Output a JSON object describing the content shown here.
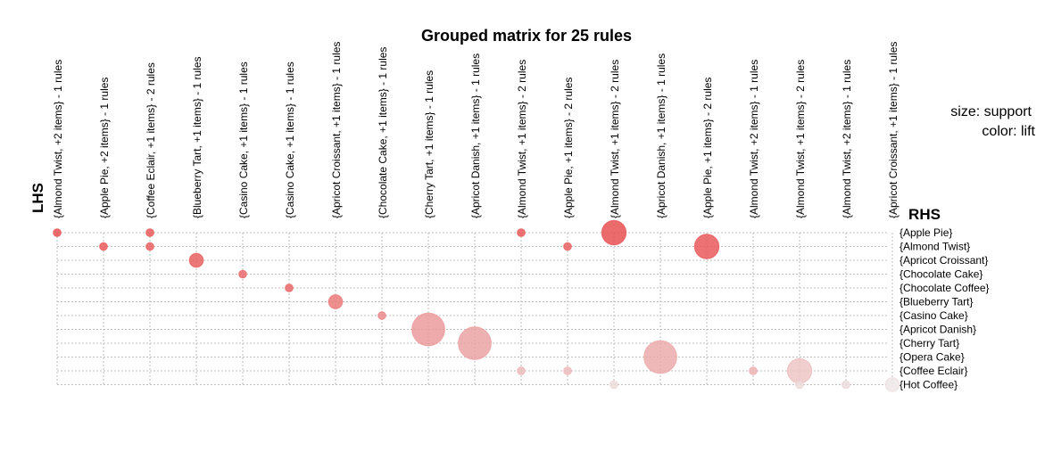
{
  "chart_data": {
    "type": "scatter",
    "subtype": "grouped-matrix",
    "title": "Grouped matrix for 25 rules",
    "xlabel": "LHS",
    "ylabel": "RHS",
    "legend": {
      "size": "size: support",
      "color": "color: lift"
    },
    "lhs_groups": [
      "{Almond Twist, +2 items} - 1 rules",
      "{Apple Pie, +2 items} - 1 rules",
      "{Coffee Eclair, +1 items} - 2 rules",
      "{Blueberry Tart, +1 items} - 1 rules",
      "{Casino Cake, +1 items} - 1 rules",
      "{Casino Cake, +1 items} - 1 rules",
      "{Apricot Croissant, +1 items} - 1 rules",
      "{Chocolate Cake, +1 items} - 1 rules",
      "{Cherry Tart, +1 items} - 1 rules",
      "{Apricot Danish, +1 items} - 1 rules",
      "{Almond Twist, +1 items} - 2 rules",
      "{Apple Pie, +1 items} - 2 rules",
      "{Almond Twist, +1 items} - 2 rules",
      "{Apricot Danish, +1 items} - 1 rules",
      "{Apple Pie, +1 items} - 2 rules",
      "{Almond Twist, +2 items} - 1 rules",
      "{Almond Twist, +1 items} - 2 rules",
      "{Almond Twist, +2 items} - 1 rules",
      "{Apricot Croissant, +1 items} - 1 rules"
    ],
    "rhs_items": [
      "{Apple Pie}",
      "{Almond Twist}",
      "{Apricot Croissant}",
      "{Chocolate Cake}",
      "{Chocolate Coffee}",
      "{Blueberry Tart}",
      "{Casino Cake}",
      "{Apricot Danish}",
      "{Cherry Tart}",
      "{Opera Cake}",
      "{Coffee Eclair}",
      "{Hot Coffee}"
    ],
    "points": [
      {
        "lhs": 0,
        "rhs": 0,
        "support": 0.01,
        "lift": 0.95
      },
      {
        "lhs": 2,
        "rhs": 0,
        "support": 0.01,
        "lift": 0.9
      },
      {
        "lhs": 10,
        "rhs": 0,
        "support": 0.01,
        "lift": 0.9
      },
      {
        "lhs": 12,
        "rhs": 0,
        "support": 0.35,
        "lift": 0.95
      },
      {
        "lhs": 1,
        "rhs": 1,
        "support": 0.01,
        "lift": 0.9
      },
      {
        "lhs": 2,
        "rhs": 1,
        "support": 0.01,
        "lift": 0.85
      },
      {
        "lhs": 11,
        "rhs": 1,
        "support": 0.01,
        "lift": 0.85
      },
      {
        "lhs": 14,
        "rhs": 1,
        "support": 0.35,
        "lift": 0.9
      },
      {
        "lhs": 3,
        "rhs": 2,
        "support": 0.08,
        "lift": 0.85
      },
      {
        "lhs": 4,
        "rhs": 3,
        "support": 0.01,
        "lift": 0.8
      },
      {
        "lhs": 5,
        "rhs": 4,
        "support": 0.01,
        "lift": 0.8
      },
      {
        "lhs": 6,
        "rhs": 5,
        "support": 0.08,
        "lift": 0.7
      },
      {
        "lhs": 7,
        "rhs": 6,
        "support": 0.01,
        "lift": 0.6
      },
      {
        "lhs": 8,
        "rhs": 7,
        "support": 0.7,
        "lift": 0.5
      },
      {
        "lhs": 9,
        "rhs": 8,
        "support": 0.7,
        "lift": 0.45
      },
      {
        "lhs": 10,
        "rhs": 10,
        "support": 0.01,
        "lift": 0.3
      },
      {
        "lhs": 11,
        "rhs": 10,
        "support": 0.01,
        "lift": 0.3
      },
      {
        "lhs": 12,
        "rhs": 11,
        "support": 0.01,
        "lift": 0.1
      },
      {
        "lhs": 13,
        "rhs": 9,
        "support": 0.7,
        "lift": 0.4
      },
      {
        "lhs": 15,
        "rhs": 10,
        "support": 0.01,
        "lift": 0.35
      },
      {
        "lhs": 16,
        "rhs": 10,
        "support": 0.35,
        "lift": 0.25
      },
      {
        "lhs": 16,
        "rhs": 11,
        "support": 0.01,
        "lift": 0.1
      },
      {
        "lhs": 17,
        "rhs": 11,
        "support": 0.01,
        "lift": 0.1
      },
      {
        "lhs": 18,
        "rhs": 11,
        "support": 0.08,
        "lift": 0.05
      }
    ],
    "colors": {
      "high_lift": "#e8484a",
      "low_lift": "#eeeeee"
    },
    "grid": true
  }
}
